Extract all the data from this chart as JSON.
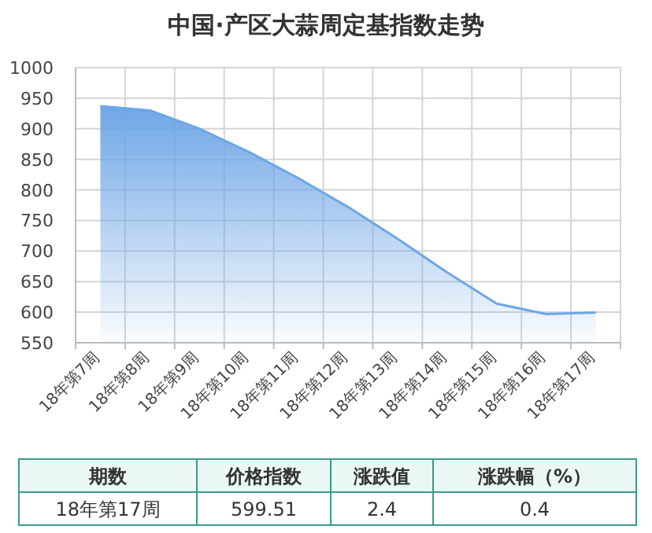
{
  "chart_data": {
    "type": "area",
    "title": "中国·产区大蒜周定基指数走势",
    "categories": [
      "18年第7周",
      "18年第8周",
      "18年第9周",
      "18年第10周",
      "18年第11周",
      "18年第12周",
      "18年第13周",
      "18年第14周",
      "18年第15周",
      "18年第16周",
      "18年第17周"
    ],
    "series": [
      {
        "color": "#6ea6e6",
        "values": [
          937,
          930,
          900,
          862,
          819,
          772,
          720,
          665,
          614,
          597,
          599.51
        ]
      }
    ],
    "ylim": [
      550,
      1000
    ],
    "yticks": [
      550,
      600,
      650,
      700,
      750,
      800,
      850,
      900,
      950,
      1000
    ],
    "grid": true,
    "annotations": [
      "期数",
      "价格指数",
      "涨跌值",
      "涨跌幅（%）",
      "18年第17周",
      "599.51",
      "2.4",
      "0.4"
    ]
  }
}
